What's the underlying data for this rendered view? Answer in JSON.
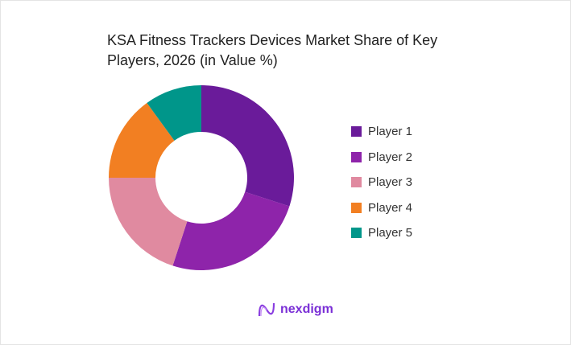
{
  "chart_data": {
    "type": "pie",
    "title": "KSA Fitness Trackers Devices Market Share of Key Players, 2026 (in Value %)",
    "categories": [
      "Player 1",
      "Player 2",
      "Player 3",
      "Player 4",
      "Player 5"
    ],
    "values": [
      30,
      25,
      20,
      15,
      10
    ],
    "colors": [
      "#6A1B9A",
      "#8E24AA",
      "#E08AA0",
      "#F27F22",
      "#00968A"
    ],
    "donut": true,
    "legend_position": "right"
  },
  "brand": {
    "name": "nexdigm"
  }
}
